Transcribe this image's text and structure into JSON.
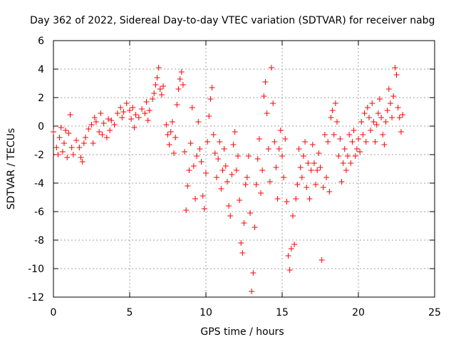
{
  "chart_data": {
    "type": "scatter",
    "title": "Day 362 of 2022, Sidereal Day-to-day VTEC variation (SDTVAR) for receiver nabg",
    "xlabel": "GPS time / hours",
    "ylabel": "SDTVAR / TECUs",
    "xlim": [
      0,
      25
    ],
    "ylim": [
      -12,
      6
    ],
    "x_ticks": [
      "0",
      "5",
      "10",
      "15",
      "20",
      "25"
    ],
    "y_ticks": [
      "6",
      "4",
      "2",
      "0",
      "-2",
      "-4",
      "-6",
      "-8",
      "-10",
      "-12"
    ],
    "grid": true,
    "marker": "+",
    "series": [
      {
        "name": "SDTVAR",
        "color": "#ff0000",
        "points": [
          [
            0.0,
            -0.4
          ],
          [
            0.2,
            -1.5
          ],
          [
            0.3,
            -2.0
          ],
          [
            0.4,
            -0.8
          ],
          [
            0.5,
            -0.1
          ],
          [
            0.6,
            -1.8
          ],
          [
            0.7,
            -1.2
          ],
          [
            0.8,
            -0.3
          ],
          [
            0.9,
            -2.2
          ],
          [
            1.0,
            -0.5
          ],
          [
            1.1,
            0.8
          ],
          [
            1.2,
            -1.5
          ],
          [
            1.3,
            -2.0
          ],
          [
            1.5,
            -1.0
          ],
          [
            1.7,
            -1.5
          ],
          [
            1.8,
            -2.2
          ],
          [
            1.9,
            -2.5
          ],
          [
            2.0,
            -1.2
          ],
          [
            2.1,
            -0.8
          ],
          [
            2.3,
            -0.2
          ],
          [
            2.5,
            0.1
          ],
          [
            2.6,
            -1.2
          ],
          [
            2.7,
            0.6
          ],
          [
            2.8,
            0.3
          ],
          [
            3.0,
            -0.4
          ],
          [
            3.1,
            0.9
          ],
          [
            3.2,
            -0.6
          ],
          [
            3.3,
            0.2
          ],
          [
            3.5,
            -0.8
          ],
          [
            3.6,
            0.5
          ],
          [
            3.7,
            -0.3
          ],
          [
            3.8,
            0.4
          ],
          [
            4.0,
            0.1
          ],
          [
            4.2,
            0.9
          ],
          [
            4.4,
            1.3
          ],
          [
            4.5,
            0.6
          ],
          [
            4.6,
            1.0
          ],
          [
            4.8,
            1.6
          ],
          [
            5.0,
            1.1
          ],
          [
            5.1,
            0.5
          ],
          [
            5.2,
            1.3
          ],
          [
            5.3,
            -0.1
          ],
          [
            5.4,
            0.8
          ],
          [
            5.6,
            0.6
          ],
          [
            5.8,
            1.2
          ],
          [
            6.0,
            0.9
          ],
          [
            6.1,
            1.7
          ],
          [
            6.2,
            0.4
          ],
          [
            6.3,
            1.1
          ],
          [
            6.5,
            1.9
          ],
          [
            6.6,
            2.3
          ],
          [
            6.7,
            2.9
          ],
          [
            6.8,
            3.4
          ],
          [
            6.9,
            4.1
          ],
          [
            7.0,
            2.6
          ],
          [
            7.1,
            2.2
          ],
          [
            7.2,
            2.8
          ],
          [
            7.4,
            0.1
          ],
          [
            7.5,
            -0.6
          ],
          [
            7.6,
            -1.3
          ],
          [
            7.7,
            -0.4
          ],
          [
            7.8,
            0.3
          ],
          [
            7.9,
            -1.9
          ],
          [
            8.0,
            -0.8
          ],
          [
            8.1,
            1.5
          ],
          [
            8.2,
            2.6
          ],
          [
            8.3,
            3.3
          ],
          [
            8.4,
            3.8
          ],
          [
            8.5,
            2.9
          ],
          [
            8.6,
            -1.8
          ],
          [
            8.7,
            -5.9
          ],
          [
            8.8,
            -4.2
          ],
          [
            8.9,
            -3.1
          ],
          [
            9.0,
            -1.2
          ],
          [
            9.1,
            1.3
          ],
          [
            9.2,
            -2.8
          ],
          [
            9.3,
            -5.1
          ],
          [
            9.4,
            -2.1
          ],
          [
            9.5,
            0.3
          ],
          [
            9.6,
            -1.6
          ],
          [
            9.7,
            -2.5
          ],
          [
            9.8,
            -4.9
          ],
          [
            9.9,
            -5.8
          ],
          [
            10.0,
            -3.3
          ],
          [
            10.1,
            -1.1
          ],
          [
            10.2,
            0.7
          ],
          [
            10.3,
            1.9
          ],
          [
            10.4,
            2.7
          ],
          [
            10.5,
            -0.6
          ],
          [
            10.6,
            -1.9
          ],
          [
            10.7,
            -3.6
          ],
          [
            10.8,
            -2.3
          ],
          [
            10.9,
            -1.1
          ],
          [
            11.0,
            -4.4
          ],
          [
            11.1,
            -3.1
          ],
          [
            11.2,
            -1.6
          ],
          [
            11.3,
            -2.8
          ],
          [
            11.4,
            -3.9
          ],
          [
            11.5,
            -5.6
          ],
          [
            11.6,
            -6.3
          ],
          [
            11.7,
            -3.4
          ],
          [
            11.8,
            -1.3
          ],
          [
            11.9,
            -0.4
          ],
          [
            12.0,
            -3.1
          ],
          [
            12.1,
            -2.1
          ],
          [
            12.2,
            -5.2
          ],
          [
            12.3,
            -8.2
          ],
          [
            12.4,
            -8.9
          ],
          [
            12.5,
            -6.8
          ],
          [
            12.6,
            -4.1
          ],
          [
            12.7,
            -3.6
          ],
          [
            12.8,
            -2.1
          ],
          [
            12.9,
            -6.1
          ],
          [
            13.0,
            -11.6
          ],
          [
            13.1,
            -10.3
          ],
          [
            13.2,
            -7.1
          ],
          [
            13.3,
            -4.1
          ],
          [
            13.4,
            -2.3
          ],
          [
            13.5,
            -0.9
          ],
          [
            13.6,
            -4.7
          ],
          [
            13.7,
            -3.1
          ],
          [
            13.8,
            2.1
          ],
          [
            13.9,
            3.1
          ],
          [
            14.0,
            0.9
          ],
          [
            14.1,
            -1.6
          ],
          [
            14.2,
            -3.9
          ],
          [
            14.3,
            4.1
          ],
          [
            14.4,
            1.6
          ],
          [
            14.5,
            -1.1
          ],
          [
            14.6,
            -2.9
          ],
          [
            14.7,
            -5.1
          ],
          [
            14.8,
            -1.6
          ],
          [
            14.9,
            -0.3
          ],
          [
            15.0,
            -2.1
          ],
          [
            15.1,
            -3.6
          ],
          [
            15.2,
            -0.9
          ],
          [
            15.3,
            -5.3
          ],
          [
            15.4,
            -9.1
          ],
          [
            15.5,
            -10.1
          ],
          [
            15.6,
            -8.6
          ],
          [
            15.7,
            -6.3
          ],
          [
            15.8,
            -8.3
          ],
          [
            15.9,
            -5.1
          ],
          [
            16.0,
            -4.1
          ],
          [
            16.1,
            -1.6
          ],
          [
            16.2,
            -2.9
          ],
          [
            16.3,
            -3.6
          ],
          [
            16.4,
            -2.1
          ],
          [
            16.5,
            -1.1
          ],
          [
            16.6,
            -4.3
          ],
          [
            16.7,
            -2.6
          ],
          [
            16.8,
            -5.1
          ],
          [
            16.9,
            -3.1
          ],
          [
            17.0,
            -1.3
          ],
          [
            17.1,
            -2.6
          ],
          [
            17.2,
            -4.1
          ],
          [
            17.3,
            -3.1
          ],
          [
            17.4,
            -1.9
          ],
          [
            17.5,
            -2.9
          ],
          [
            17.6,
            -9.4
          ],
          [
            17.7,
            -4.3
          ],
          [
            17.8,
            -0.6
          ],
          [
            17.9,
            -3.6
          ],
          [
            18.0,
            -1.1
          ],
          [
            18.1,
            -4.6
          ],
          [
            18.2,
            0.6
          ],
          [
            18.3,
            1.1
          ],
          [
            18.4,
            -0.6
          ],
          [
            18.5,
            1.6
          ],
          [
            18.6,
            0.3
          ],
          [
            18.7,
            -2.1
          ],
          [
            18.8,
            -0.9
          ],
          [
            18.9,
            -3.9
          ],
          [
            19.0,
            -2.6
          ],
          [
            19.1,
            -1.6
          ],
          [
            19.2,
            -3.1
          ],
          [
            19.3,
            -2.1
          ],
          [
            19.4,
            -0.6
          ],
          [
            19.5,
            -2.6
          ],
          [
            19.6,
            -1.1
          ],
          [
            19.7,
            -0.3
          ],
          [
            19.8,
            -2.1
          ],
          [
            19.9,
            -1.6
          ],
          [
            20.0,
            -0.9
          ],
          [
            20.1,
            -1.8
          ],
          [
            20.2,
            0.3
          ],
          [
            20.3,
            -0.6
          ],
          [
            20.4,
            0.9
          ],
          [
            20.5,
            -1.1
          ],
          [
            20.6,
            1.3
          ],
          [
            20.7,
            0.6
          ],
          [
            20.8,
            -0.3
          ],
          [
            20.9,
            1.6
          ],
          [
            21.0,
            0.3
          ],
          [
            21.1,
            -1.1
          ],
          [
            21.2,
            0.1
          ],
          [
            21.3,
            0.9
          ],
          [
            21.4,
            1.9
          ],
          [
            21.5,
            0.6
          ],
          [
            21.6,
            -0.6
          ],
          [
            21.7,
            -1.3
          ],
          [
            21.8,
            0.3
          ],
          [
            21.9,
            1.1
          ],
          [
            22.0,
            2.6
          ],
          [
            22.1,
            1.6
          ],
          [
            22.2,
            0.6
          ],
          [
            22.3,
            2.1
          ],
          [
            22.4,
            4.1
          ],
          [
            22.5,
            3.6
          ],
          [
            22.6,
            1.3
          ],
          [
            22.7,
            0.6
          ],
          [
            22.8,
            -0.4
          ],
          [
            22.9,
            0.8
          ]
        ]
      }
    ]
  }
}
